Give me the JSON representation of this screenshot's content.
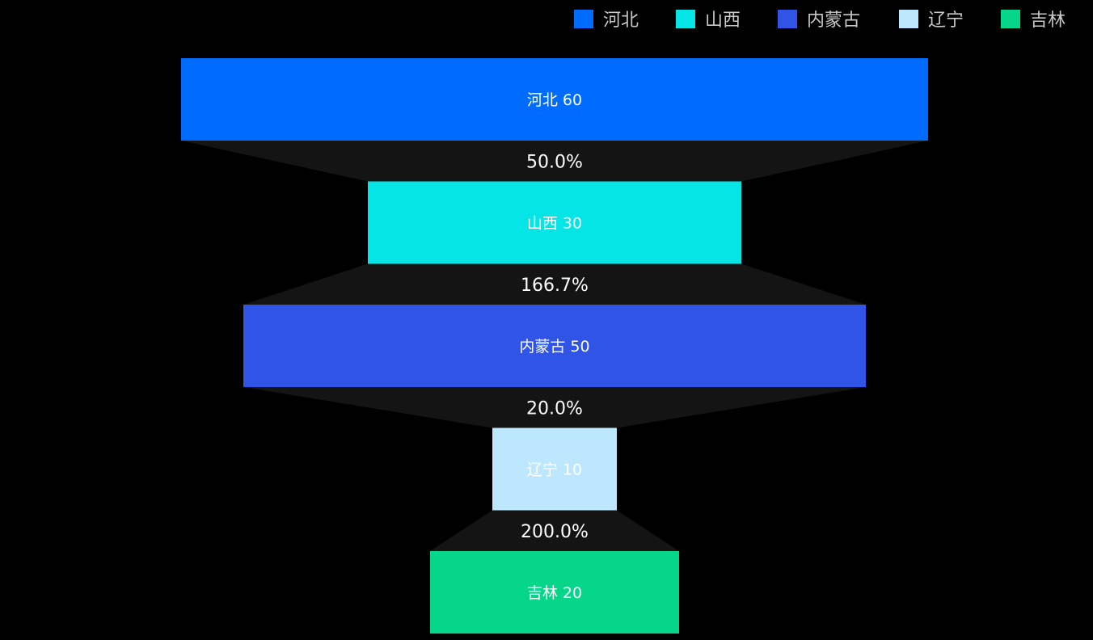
{
  "chart_data": {
    "type": "funnel",
    "categories": [
      "河北",
      "山西",
      "内蒙古",
      "辽宁",
      "吉林"
    ],
    "values": [
      60,
      30,
      50,
      10,
      20
    ],
    "colors": [
      "#006cff",
      "#05e5e5",
      "#3055e6",
      "#bde7ff",
      "#05d68a"
    ],
    "bar_labels": [
      "河北 60",
      "山西 30",
      "内蒙古 50",
      "辽宁 10",
      "吉林 20"
    ],
    "conversions": [
      "50.0%",
      "166.7%",
      "20.0%",
      "200.0%"
    ],
    "max": 60,
    "legend": {
      "position": "top-right",
      "items": [
        "河北",
        "山西",
        "内蒙古",
        "辽宁",
        "吉林"
      ]
    },
    "connector_color": "#141414",
    "background": "#000000"
  }
}
